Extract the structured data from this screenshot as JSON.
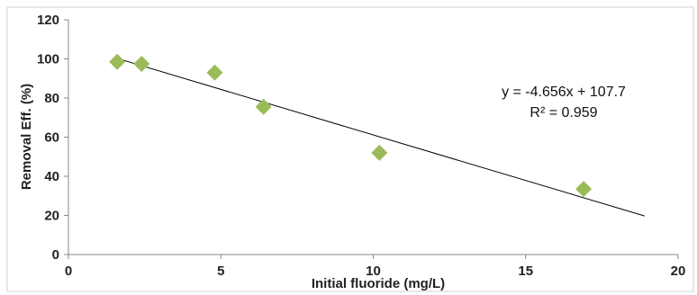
{
  "chart_data": {
    "type": "scatter",
    "xlabel": "Initial fluoride (mg/L)",
    "ylabel": "Removal Eff. (%)",
    "xlim": [
      0,
      20
    ],
    "ylim": [
      0,
      120
    ],
    "xticks": [
      0,
      5,
      10,
      15,
      20
    ],
    "yticks": [
      0,
      20,
      40,
      60,
      80,
      100,
      120
    ],
    "grid": false,
    "legend": "none",
    "series": [
      {
        "marker": "diamond",
        "color": "#9bbb59",
        "points": [
          {
            "x": 1.6,
            "y": 98.5
          },
          {
            "x": 2.4,
            "y": 97.5
          },
          {
            "x": 4.8,
            "y": 93
          },
          {
            "x": 6.4,
            "y": 75.5
          },
          {
            "x": 10.2,
            "y": 52
          },
          {
            "x": 16.9,
            "y": 33.5
          }
        ]
      }
    ],
    "trendline": {
      "slope": -4.656,
      "intercept": 107.7,
      "x_range": [
        1.6,
        18.9
      ],
      "color": "#000000",
      "equation": "y = -4.656x + 107.7",
      "r_squared": "R² = 0.959"
    }
  }
}
